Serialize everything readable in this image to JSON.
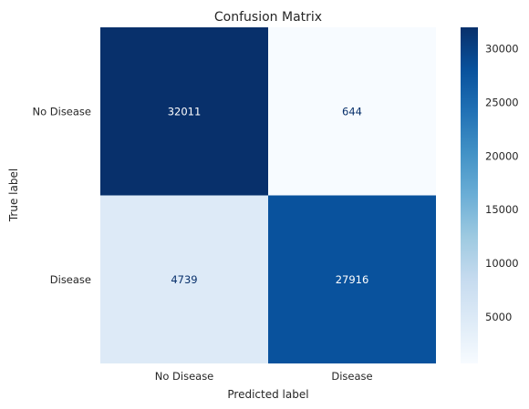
{
  "chart_data": {
    "type": "heatmap",
    "title": "Confusion Matrix",
    "xlabel": "Predicted label",
    "ylabel": "True label",
    "x_categories": [
      "No Disease",
      "Disease"
    ],
    "y_categories": [
      "No Disease",
      "Disease"
    ],
    "values": [
      [
        32011,
        644
      ],
      [
        4739,
        27916
      ]
    ],
    "colormap": "Blues",
    "colorbar": {
      "range": [
        644,
        32011
      ],
      "ticks": [
        5000,
        10000,
        15000,
        20000,
        25000,
        30000
      ],
      "tick_labels": [
        "5000",
        "10000",
        "15000",
        "20000",
        "25000",
        "30000"
      ]
    },
    "grid": false
  }
}
